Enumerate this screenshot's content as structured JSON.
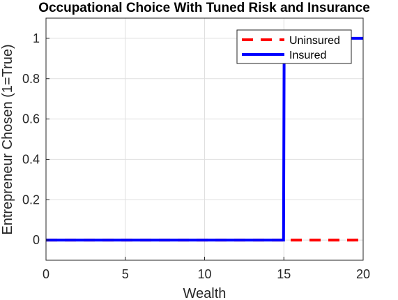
{
  "chart_data": {
    "type": "line",
    "title": "Occupational Choice With Tuned Risk and Insurance",
    "xlabel": "Wealth",
    "ylabel": "Entrepreneur Chosen (1=True)",
    "xlim": [
      0,
      20
    ],
    "ylim": [
      -0.1,
      1.1
    ],
    "xticks": [
      0,
      5,
      10,
      15,
      20
    ],
    "xtick_labels": [
      "0",
      "5",
      "10",
      "15",
      "20"
    ],
    "yticks": [
      0,
      0.2,
      0.4,
      0.6,
      0.8,
      1
    ],
    "ytick_labels": [
      "0",
      "0.2",
      "0.4",
      "0.6",
      "0.8",
      "1"
    ],
    "grid": true,
    "legend_position": "top-right",
    "series": [
      {
        "name": "Uninsured",
        "color": "#ff0000",
        "style": "dashed",
        "x": [
          0,
          20
        ],
        "y": [
          0,
          0
        ]
      },
      {
        "name": "Insured",
        "color": "#0000ff",
        "style": "solid",
        "x": [
          0,
          14.98,
          15.0,
          15.02,
          20
        ],
        "y": [
          0,
          0,
          0.5,
          1,
          1
        ]
      }
    ]
  }
}
